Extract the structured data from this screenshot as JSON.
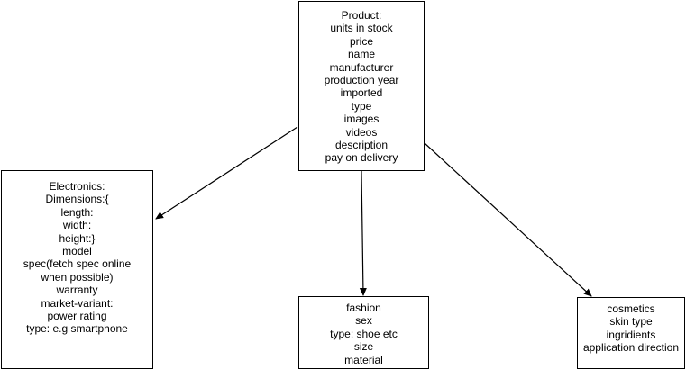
{
  "nodes": {
    "product": {
      "lines": [
        "Product:",
        "units in stock",
        "price",
        "name",
        "manufacturer",
        "production year",
        "imported",
        "type",
        "images",
        "videos",
        "description",
        "pay on delivery"
      ]
    },
    "electronics": {
      "lines": [
        "Electronics:",
        "Dimensions:{",
        "length:",
        "width:",
        "height:}",
        "model",
        "spec(fetch spec online when possible)",
        "warranty",
        "market-variant:",
        "power rating",
        "type: e.g smartphone"
      ]
    },
    "fashion": {
      "lines": [
        "fashion",
        "sex",
        "type: shoe etc",
        "size",
        "material"
      ]
    },
    "cosmetics": {
      "lines": [
        "cosmetics",
        "skin type",
        "ingridients",
        "application direction"
      ]
    }
  },
  "edges": [
    {
      "from": "product",
      "to": "electronics"
    },
    {
      "from": "product",
      "to": "fashion"
    },
    {
      "from": "product",
      "to": "cosmetics"
    }
  ]
}
